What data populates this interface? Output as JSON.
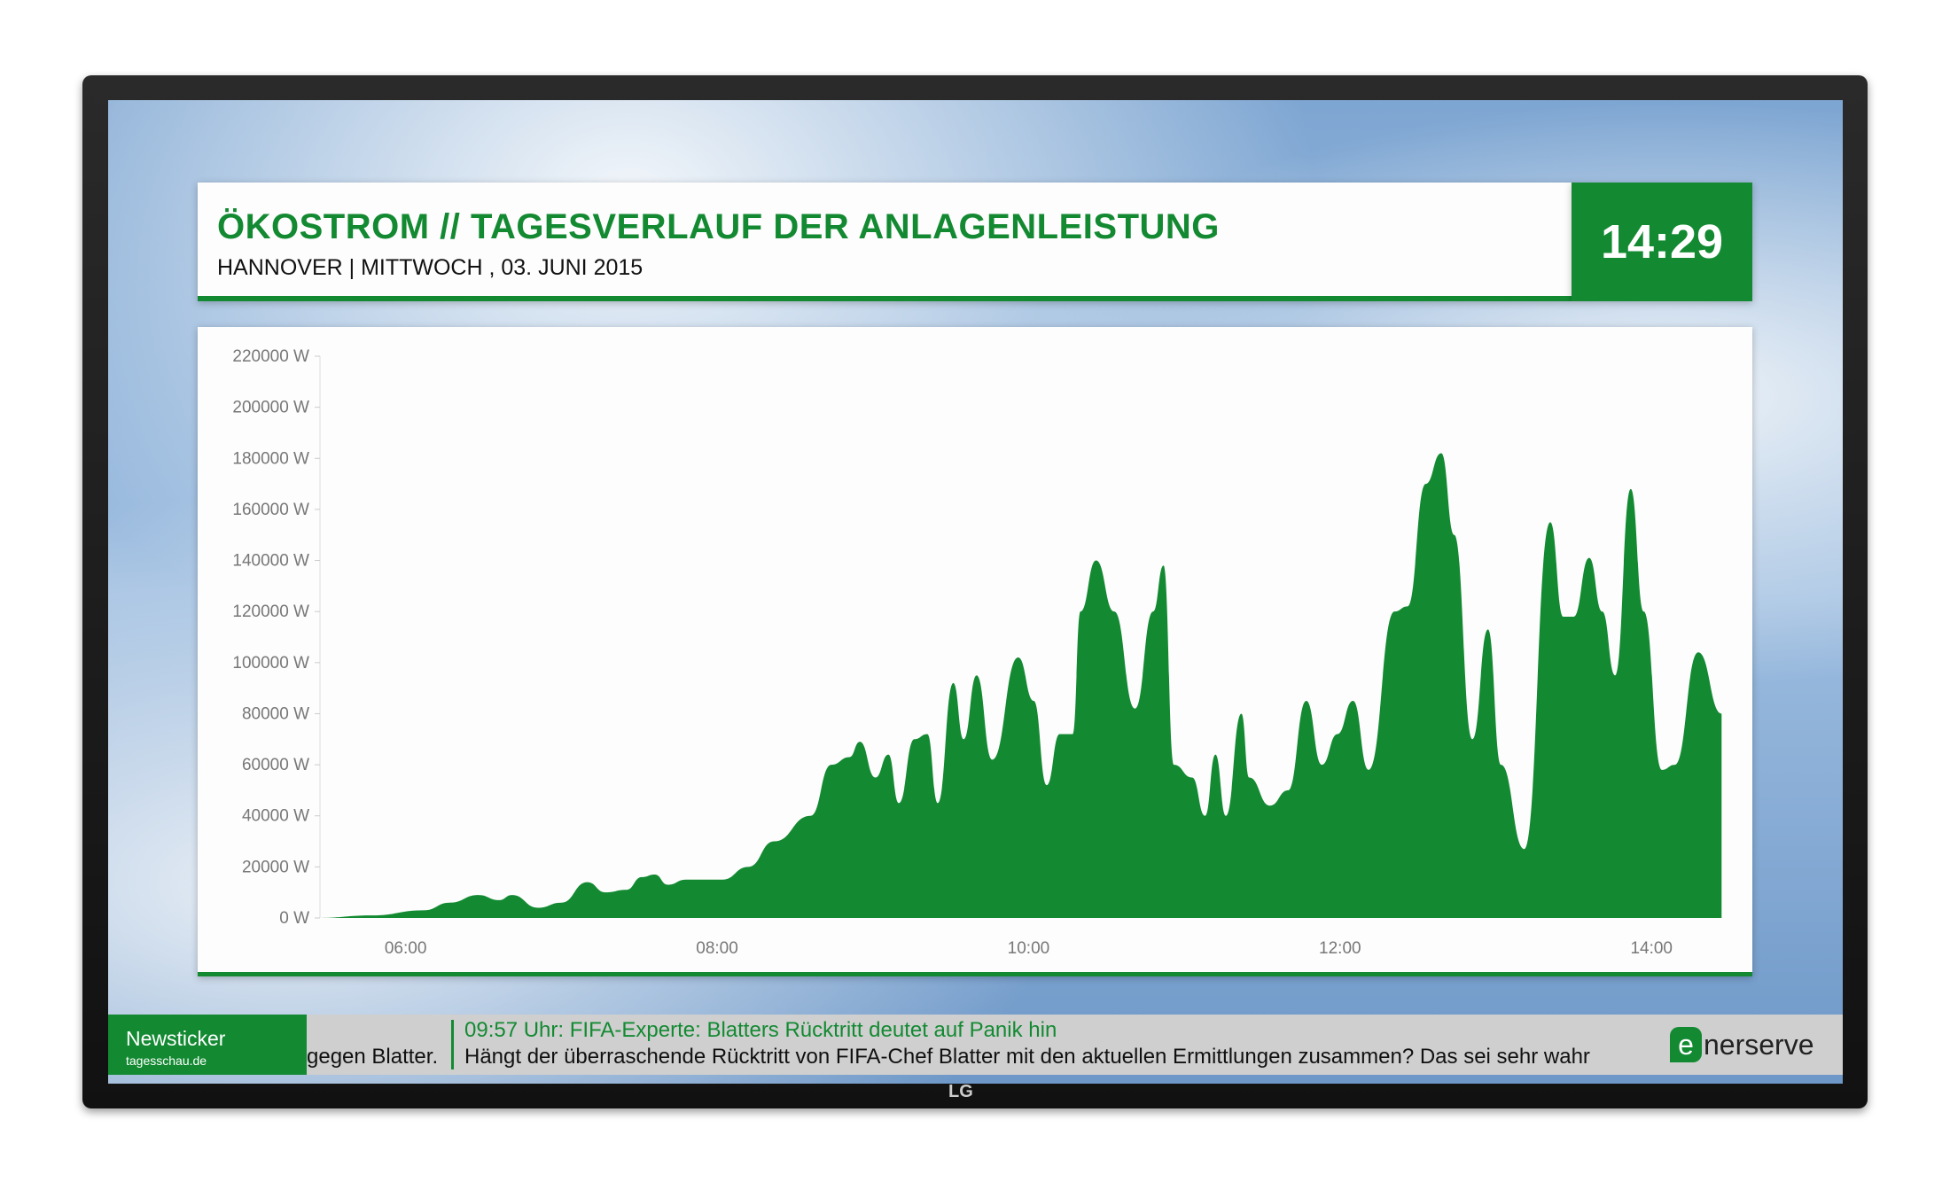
{
  "header": {
    "title": "ÖKOSTROM // TAGESVERLAUF DER ANLAGENLEISTUNG",
    "subtitle": "HANNOVER | MITTWOCH , 03. JUNI 2015",
    "clock": "14:29"
  },
  "colors": {
    "accent": "#138a32",
    "ticker_bg": "#cfcfcf"
  },
  "chart_data": {
    "type": "area",
    "title": "",
    "xlabel": "",
    "ylabel": "",
    "ylim": [
      0,
      220000
    ],
    "xlim_hours": [
      5.45,
      14.45
    ],
    "y_ticks": [
      "0 W",
      "20000 W",
      "40000 W",
      "60000 W",
      "80000 W",
      "100000 W",
      "120000 W",
      "140000 W",
      "160000 W",
      "180000 W",
      "200000 W",
      "220000 W"
    ],
    "x_ticks": [
      "06:00",
      "08:00",
      "10:00",
      "12:00",
      "14:00"
    ],
    "grid": false,
    "series": [
      {
        "name": "Anlagenleistung",
        "color": "#138a32",
        "x": [
          "05:26",
          "05:47",
          "06:07",
          "06:17",
          "06:28",
          "06:36",
          "06:41",
          "06:51",
          "07:00",
          "07:10",
          "07:17",
          "07:25",
          "07:31",
          "07:36",
          "07:41",
          "07:48",
          "08:02",
          "08:12",
          "08:22",
          "08:36",
          "08:44",
          "08:51",
          "08:55",
          "09:01",
          "09:06",
          "09:10",
          "09:16",
          "09:21",
          "09:25",
          "09:31",
          "09:35",
          "09:40",
          "09:46",
          "09:56",
          "10:02",
          "10:07",
          "10:12",
          "10:17",
          "10:20",
          "10:26",
          "10:33",
          "10:41",
          "10:48",
          "10:52",
          "10:56",
          "11:03",
          "11:08",
          "11:12",
          "11:16",
          "11:22",
          "11:25",
          "11:33",
          "11:40",
          "11:47",
          "11:53",
          "11:59",
          "12:05",
          "12:11",
          "12:21",
          "12:26",
          "12:33",
          "12:39",
          "12:44",
          "12:51",
          "12:57",
          "13:02",
          "13:11",
          "13:21",
          "13:26",
          "13:30",
          "13:36",
          "13:41",
          "13:46",
          "13:52",
          "13:57",
          "14:04",
          "14:09",
          "14:18",
          "14:27"
        ],
        "values": [
          0,
          1000,
          3000,
          6000,
          9000,
          7000,
          9000,
          4000,
          6000,
          14000,
          10000,
          11000,
          16000,
          17000,
          13000,
          15000,
          15000,
          20000,
          30000,
          40000,
          60000,
          63000,
          69000,
          55000,
          64000,
          45000,
          70000,
          72000,
          45000,
          92000,
          70000,
          95000,
          62000,
          102000,
          85000,
          52000,
          72000,
          72000,
          120000,
          140000,
          120000,
          82000,
          120000,
          138000,
          60000,
          55000,
          40000,
          64000,
          40000,
          80000,
          55000,
          44000,
          50000,
          85000,
          60000,
          72000,
          85000,
          58000,
          120000,
          122000,
          170000,
          182000,
          150000,
          70000,
          113000,
          60000,
          27000,
          155000,
          118000,
          118000,
          141000,
          120000,
          95000,
          168000,
          120000,
          58000,
          60000,
          104000,
          80000
        ]
      }
    ]
  },
  "ticker": {
    "label": "Newsticker",
    "source": "tagesschau.de",
    "previous_tail": "gegen Blatter.",
    "headline": "09:57 Uhr: FIFA-Experte: Blatters Rücktritt deutet auf Panik hin",
    "body": "Hängt der überraschende Rücktritt von FIFA-Chef Blatter mit den aktuellen Ermittlungen zusammen? Das sei sehr wahr",
    "logo_e": "e",
    "logo_rest": "nerserve"
  },
  "device": {
    "brand": "LG"
  }
}
